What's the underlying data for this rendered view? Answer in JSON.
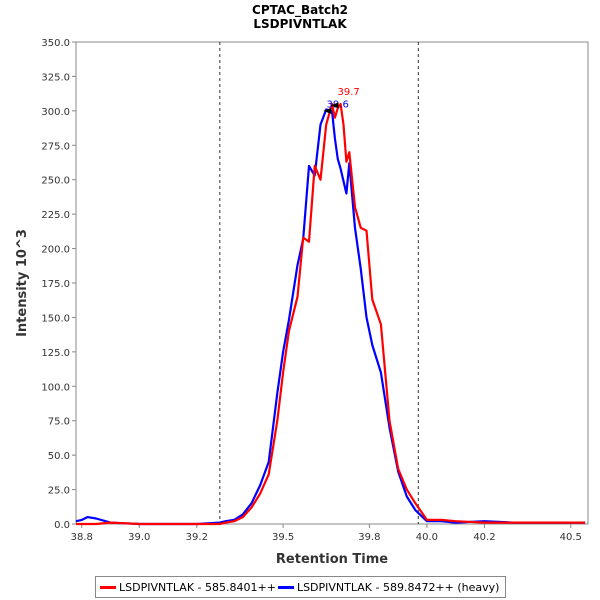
{
  "chart_data": {
    "type": "line",
    "title": "CPTAC_Batch2",
    "subtitle": "LSDPIVNTLAK",
    "xlabel": "Retention Time",
    "ylabel": "Intensity 10^3",
    "xlim": [
      38.78,
      40.56
    ],
    "ylim": [
      0,
      350
    ],
    "x_ticks": [
      "38.8",
      "39.0",
      "39.2",
      "39.5",
      "39.8",
      "40.0",
      "40.2",
      "40.5"
    ],
    "x_tick_values": [
      38.8,
      39.0,
      39.2,
      39.5,
      39.8,
      40.0,
      40.2,
      40.5
    ],
    "y_ticks": [
      "0.0",
      "25.0",
      "50.0",
      "75.0",
      "100.0",
      "125.0",
      "150.0",
      "175.0",
      "200.0",
      "225.0",
      "250.0",
      "275.0",
      "300.0",
      "325.0",
      "350.0"
    ],
    "y_tick_values": [
      0,
      25,
      50,
      75,
      100,
      125,
      150,
      175,
      200,
      225,
      250,
      275,
      300,
      325,
      350
    ],
    "boundaries": [
      39.28,
      39.97
    ],
    "series": [
      {
        "name": "LSDPIVNTLAK - 585.8401++",
        "color": "#ff0000",
        "peak_label": "39.7",
        "x": [
          38.78,
          38.85,
          38.9,
          39.0,
          39.1,
          39.2,
          39.28,
          39.3,
          39.33,
          39.36,
          39.39,
          39.42,
          39.45,
          39.48,
          39.5,
          39.52,
          39.55,
          39.57,
          39.59,
          39.61,
          39.63,
          39.65,
          39.67,
          39.68,
          39.69,
          39.7,
          39.71,
          39.72,
          39.73,
          39.75,
          39.77,
          39.79,
          39.81,
          39.84,
          39.87,
          39.9,
          39.93,
          39.96,
          40.0,
          40.05,
          40.1,
          40.2,
          40.3,
          40.4,
          40.55
        ],
        "values": [
          0,
          0,
          1,
          0,
          0,
          0,
          0,
          1,
          2,
          5,
          12,
          22,
          36,
          75,
          110,
          140,
          165,
          208,
          205,
          260,
          250,
          290,
          305,
          295,
          302,
          305,
          290,
          263,
          270,
          230,
          215,
          213,
          163,
          145,
          75,
          40,
          25,
          15,
          3,
          3,
          2,
          1,
          1,
          1,
          1
        ]
      },
      {
        "name": "LSDPIVNTLAK - 589.8472++ (heavy)",
        "color": "#0000ff",
        "peak_label": "39.6",
        "x": [
          38.78,
          38.8,
          38.82,
          38.85,
          38.9,
          39.0,
          39.1,
          39.2,
          39.28,
          39.3,
          39.33,
          39.36,
          39.39,
          39.42,
          39.45,
          39.48,
          39.5,
          39.52,
          39.55,
          39.57,
          39.59,
          39.61,
          39.63,
          39.65,
          39.67,
          39.68,
          39.69,
          39.7,
          39.72,
          39.73,
          39.75,
          39.77,
          39.79,
          39.81,
          39.84,
          39.87,
          39.9,
          39.93,
          39.96,
          40.0,
          40.05,
          40.1,
          40.2,
          40.3,
          40.4,
          40.55
        ],
        "values": [
          2,
          3,
          5,
          4,
          1,
          0,
          0,
          0,
          1,
          2,
          3,
          7,
          15,
          28,
          45,
          95,
          125,
          148,
          188,
          207,
          260,
          253,
          290,
          301,
          300,
          280,
          265,
          258,
          240,
          262,
          215,
          185,
          150,
          130,
          110,
          70,
          38,
          20,
          10,
          2,
          2,
          1,
          2,
          1,
          1,
          1
        ]
      }
    ]
  },
  "legend": {
    "items": [
      {
        "label": "LSDPIVNTLAK - 585.8401++",
        "color": "#ff0000"
      },
      {
        "label": "LSDPIVNTLAK - 589.8472++ (heavy)",
        "color": "#0000ff"
      }
    ]
  }
}
